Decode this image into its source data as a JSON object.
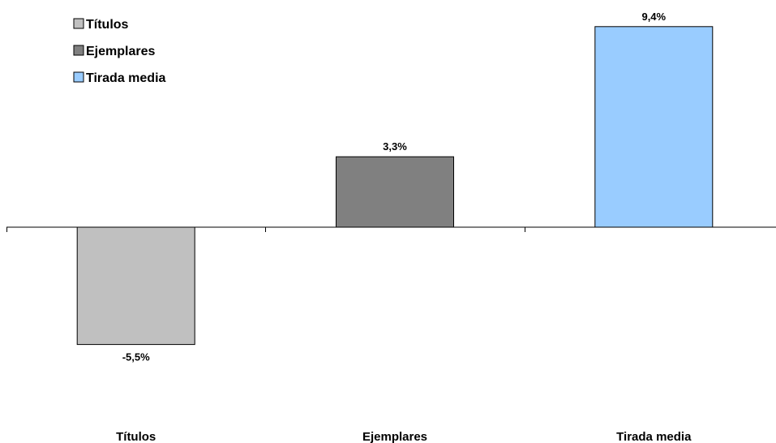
{
  "chart_data": {
    "type": "bar",
    "categories": [
      "Títulos",
      "Ejemplares",
      "Tirada media"
    ],
    "values": [
      -5.5,
      3.3,
      9.4
    ],
    "value_labels": [
      "-5,5%",
      "3,3%",
      "9,4%"
    ],
    "colors": [
      "#c0c0c0",
      "#808080",
      "#99ccff"
    ],
    "legend": {
      "placement": "top-left",
      "entries": [
        "Títulos",
        "Ejemplares",
        "Tirada media"
      ]
    },
    "ylim": [
      -5.5,
      9.4
    ],
    "grid": false
  }
}
